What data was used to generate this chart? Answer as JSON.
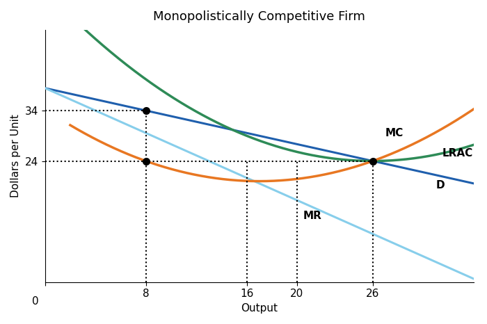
{
  "title": "Monopolistically Competitive Firm",
  "xlabel": "Output",
  "ylabel": "Dollars per Unit",
  "xlim": [
    0,
    34
  ],
  "ylim": [
    0,
    50
  ],
  "xticks": [
    0,
    8,
    16,
    20,
    26
  ],
  "yticks": [
    24,
    34
  ],
  "key_x_profit_max": 8,
  "key_x_lr_eq": 26,
  "key_x_min_lrac": 26,
  "key_y_price": 34,
  "key_y_lr": 24,
  "mc_color": "#E87722",
  "lrac_color": "#2E8B57",
  "d_color": "#1F5FAD",
  "mr_color": "#87CEEB",
  "dot_color": "black",
  "label_mc": "MC",
  "label_lrac": "LRAC",
  "label_d": "D",
  "label_mr": "MR",
  "background_color": "#ffffff",
  "title_fontsize": 13,
  "axis_label_fontsize": 11,
  "tick_fontsize": 11
}
